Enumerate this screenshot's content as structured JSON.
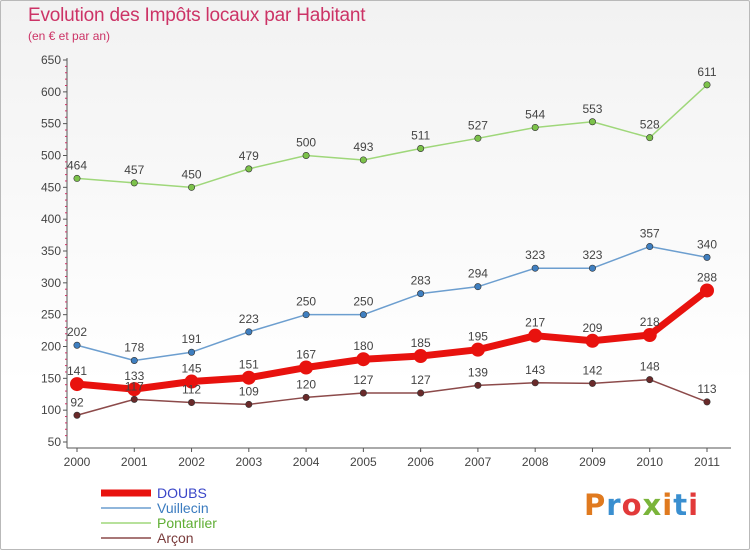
{
  "title": "Evolution des Impôts locaux par Habitant",
  "subtitle": "(en € et par an)",
  "brand": {
    "text": "Proxiti",
    "colors": [
      "#e07a1f",
      "#3a8fd0",
      "#e23a3a",
      "#7ab43a",
      "#e07a1f",
      "#3a8fd0",
      "#e23a3a"
    ]
  },
  "chart_data": {
    "type": "line",
    "title": "Evolution des Impôts locaux par Habitant",
    "subtitle": "(en € et par an)",
    "x": [
      "2000",
      "2001",
      "2002",
      "2003",
      "2004",
      "2005",
      "2006",
      "2007",
      "2008",
      "2009",
      "2010",
      "2011"
    ],
    "y_ticks": [
      50,
      100,
      150,
      200,
      250,
      300,
      350,
      400,
      450,
      500,
      550,
      600,
      650
    ],
    "ylim": [
      50,
      650
    ],
    "grid": false,
    "legend_position": "bottom-left",
    "series": [
      {
        "name": "DOUBS",
        "values": [
          141,
          133,
          145,
          151,
          167,
          180,
          185,
          195,
          217,
          209,
          218,
          288
        ],
        "color": "#e8120e",
        "marker_color": "#e8120e",
        "label_color": "#444444",
        "legend_color": "#3a46c8"
      },
      {
        "name": "Vuillecin",
        "values": [
          202,
          178,
          191,
          223,
          250,
          250,
          283,
          294,
          323,
          323,
          357,
          340
        ],
        "color": "#6c9ecf",
        "marker_color": "#3f7fc0",
        "label_color": "#444444",
        "legend_color": "#3a7bbf"
      },
      {
        "name": "Pontarlier",
        "values": [
          464,
          457,
          450,
          479,
          500,
          493,
          511,
          527,
          544,
          553,
          528,
          611
        ],
        "color": "#9fd77a",
        "marker_color": "#7cc24a",
        "label_color": "#444444",
        "legend_color": "#5fae34"
      },
      {
        "name": "Arçon",
        "values": [
          92,
          117,
          112,
          109,
          120,
          127,
          127,
          139,
          143,
          142,
          148,
          113
        ],
        "color": "#8c4a4a",
        "marker_color": "#6a2a2a",
        "label_color": "#444444",
        "legend_color": "#7a3c3c"
      }
    ]
  }
}
